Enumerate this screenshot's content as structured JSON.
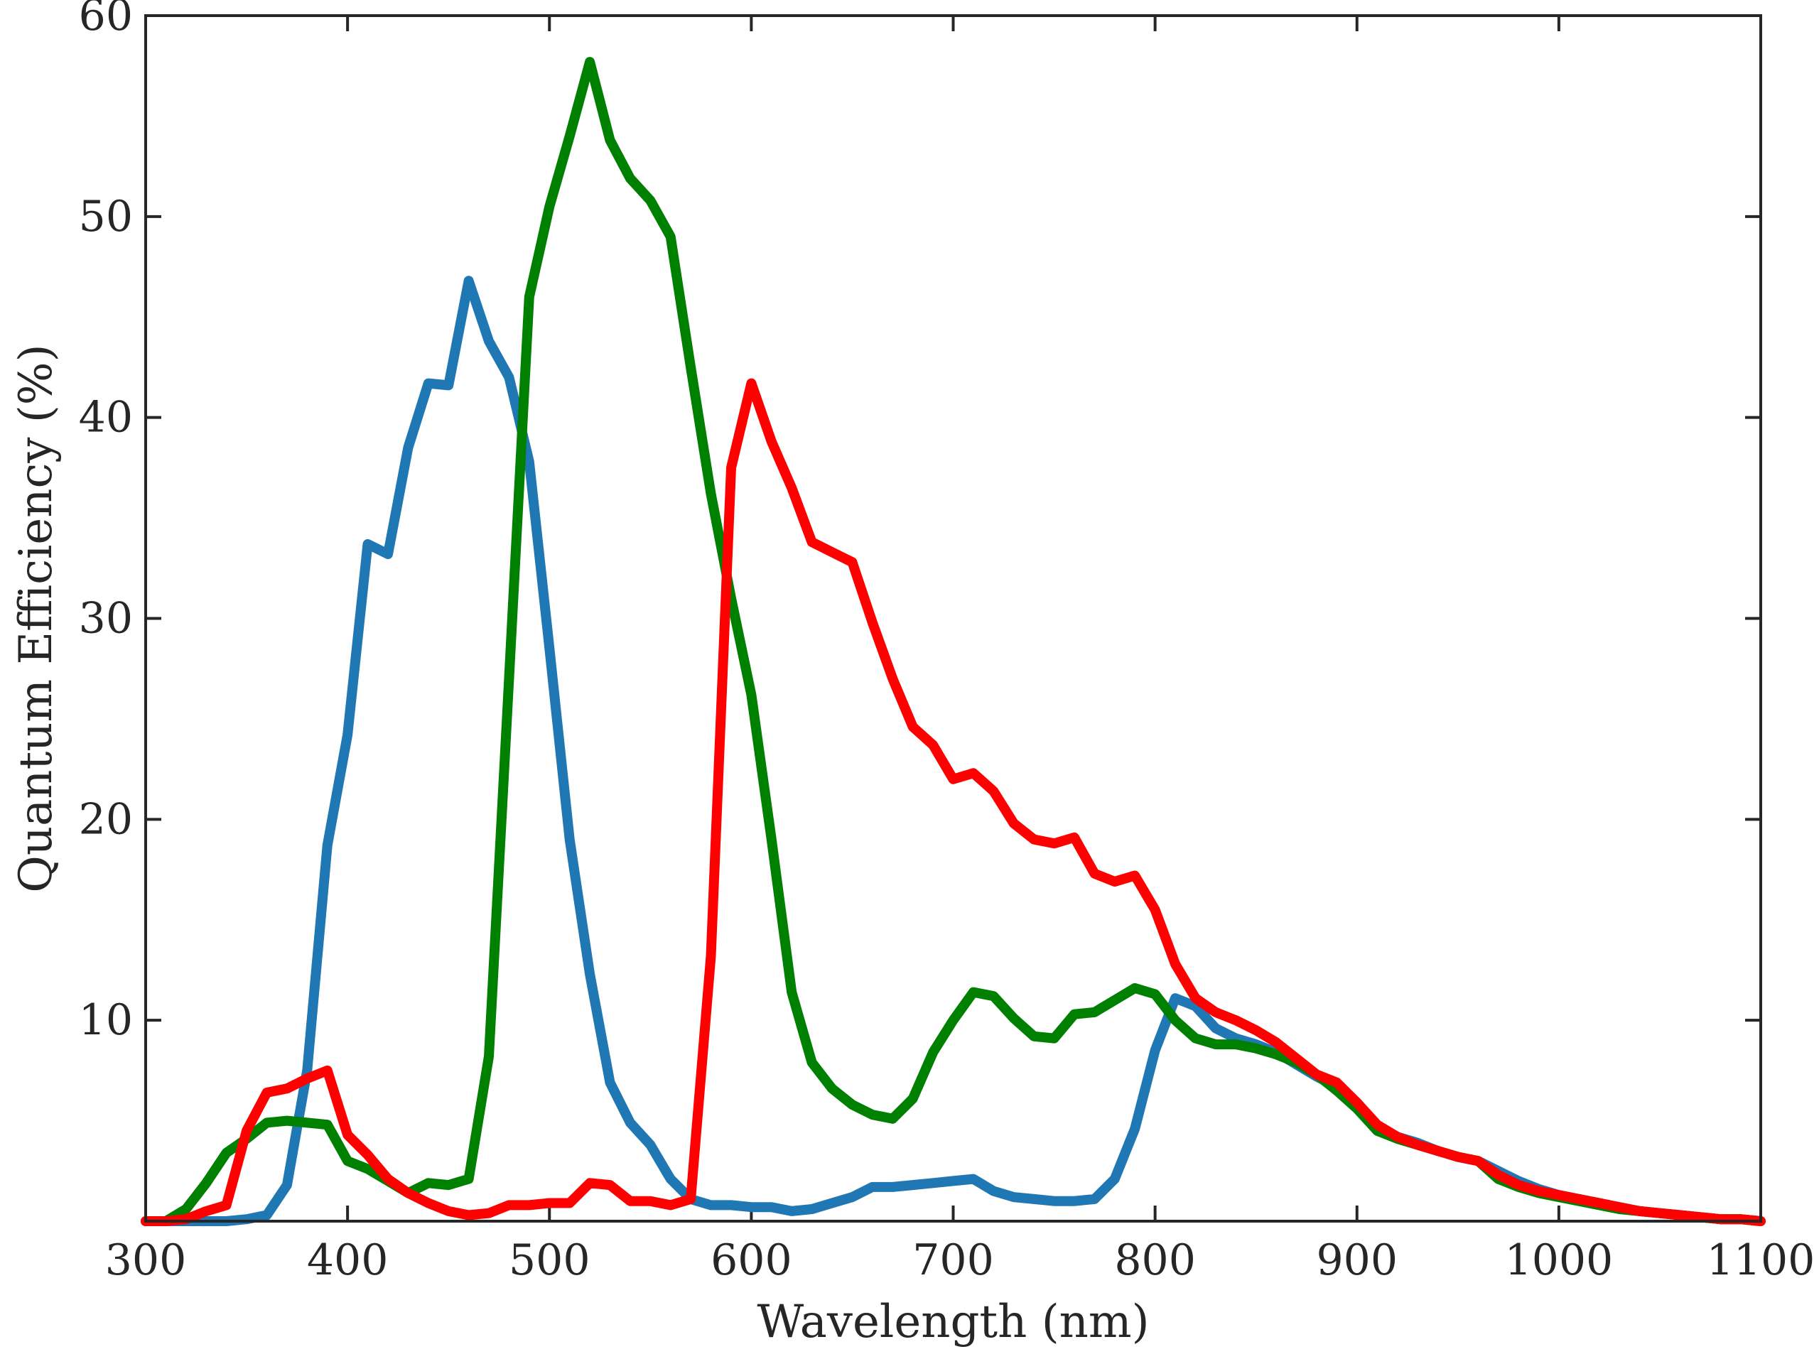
{
  "chart_data": {
    "type": "line",
    "title": "",
    "xlabel": "Wavelength (nm)",
    "ylabel": "Quantum Efficiency (%)",
    "xlim": [
      300,
      1100
    ],
    "ylim": [
      0,
      60
    ],
    "xticks": [
      "300",
      "400",
      "500",
      "600",
      "700",
      "800",
      "900",
      "1000",
      "1100"
    ],
    "yticks": [
      "10",
      "20",
      "30",
      "40",
      "50",
      "60"
    ],
    "grid": false,
    "legend": "none",
    "series": [
      {
        "color": "#1f77b4",
        "x": [
          300,
          310,
          320,
          330,
          340,
          350,
          360,
          370,
          380,
          390,
          400,
          410,
          420,
          430,
          440,
          450,
          460,
          470,
          480,
          490,
          500,
          510,
          520,
          530,
          540,
          550,
          560,
          570,
          580,
          590,
          600,
          610,
          620,
          630,
          640,
          650,
          660,
          670,
          680,
          690,
          700,
          710,
          720,
          730,
          740,
          750,
          760,
          770,
          780,
          790,
          800,
          810,
          820,
          830,
          840,
          850,
          860,
          870,
          880,
          890,
          900,
          910,
          920,
          930,
          940,
          950,
          960,
          970,
          980,
          990,
          1000,
          1010,
          1020,
          1030,
          1040,
          1050,
          1060,
          1070,
          1080,
          1090,
          1100
        ],
        "values": [
          0,
          0,
          0,
          0,
          0,
          0.1,
          0.3,
          1.8,
          7.5,
          18.7,
          24.2,
          33.7,
          33.2,
          38.5,
          41.7,
          41.6,
          46.8,
          43.8,
          42.0,
          37.8,
          28.5,
          19.0,
          12.3,
          6.9,
          4.9,
          3.8,
          2.1,
          1.1,
          0.8,
          0.8,
          0.7,
          0.7,
          0.5,
          0.6,
          0.9,
          1.2,
          1.7,
          1.7,
          1.8,
          1.9,
          2.0,
          2.1,
          1.5,
          1.2,
          1.1,
          1.0,
          1.0,
          1.1,
          2.1,
          4.6,
          8.5,
          11.1,
          10.7,
          9.6,
          9.1,
          8.8,
          8.4,
          7.8,
          7.2,
          6.7,
          5.9,
          4.7,
          4.2,
          3.9,
          3.5,
          3.2,
          3.0,
          2.5,
          2.0,
          1.6,
          1.3,
          1.1,
          0.9,
          0.7,
          0.5,
          0.4,
          0.3,
          0.2,
          0.1,
          0.1,
          0
        ]
      },
      {
        "color": "#008000",
        "x": [
          300,
          310,
          320,
          330,
          340,
          350,
          360,
          370,
          380,
          390,
          400,
          410,
          420,
          430,
          440,
          450,
          460,
          470,
          480,
          490,
          500,
          510,
          520,
          530,
          540,
          550,
          560,
          570,
          580,
          590,
          600,
          610,
          620,
          630,
          640,
          650,
          660,
          670,
          680,
          690,
          700,
          710,
          720,
          730,
          740,
          750,
          760,
          770,
          780,
          790,
          800,
          810,
          820,
          830,
          840,
          850,
          860,
          870,
          880,
          890,
          900,
          910,
          920,
          930,
          940,
          950,
          960,
          970,
          980,
          990,
          1000,
          1010,
          1020,
          1030,
          1040,
          1050,
          1060,
          1070,
          1080,
          1090,
          1100
        ],
        "values": [
          0,
          0,
          0.6,
          1.9,
          3.4,
          4.1,
          4.9,
          5.0,
          4.9,
          4.8,
          3.0,
          2.6,
          2.0,
          1.4,
          1.9,
          1.8,
          2.1,
          8.2,
          27.0,
          46.0,
          50.5,
          54.0,
          57.7,
          53.8,
          51.9,
          50.8,
          49.0,
          42.5,
          36.2,
          31.0,
          26.2,
          19.0,
          11.4,
          7.9,
          6.6,
          5.8,
          5.3,
          5.1,
          6.1,
          8.4,
          10.0,
          11.4,
          11.2,
          10.1,
          9.2,
          9.1,
          10.3,
          10.4,
          11.0,
          11.6,
          11.3,
          10.0,
          9.1,
          8.8,
          8.8,
          8.6,
          8.3,
          7.9,
          7.3,
          6.5,
          5.6,
          4.5,
          4.1,
          3.8,
          3.5,
          3.2,
          3.0,
          2.1,
          1.7,
          1.4,
          1.2,
          1.0,
          0.8,
          0.6,
          0.5,
          0.4,
          0.3,
          0.2,
          0.1,
          0.1,
          0
        ]
      },
      {
        "color": "#ff0000",
        "x": [
          300,
          310,
          320,
          330,
          340,
          350,
          360,
          370,
          380,
          390,
          400,
          410,
          420,
          430,
          440,
          450,
          460,
          470,
          480,
          490,
          500,
          510,
          520,
          530,
          540,
          550,
          560,
          570,
          580,
          590,
          600,
          610,
          620,
          630,
          640,
          650,
          660,
          670,
          680,
          690,
          700,
          710,
          720,
          730,
          740,
          750,
          760,
          770,
          780,
          790,
          800,
          810,
          820,
          830,
          840,
          850,
          860,
          870,
          880,
          890,
          900,
          910,
          920,
          930,
          940,
          950,
          960,
          970,
          980,
          990,
          1000,
          1010,
          1020,
          1030,
          1040,
          1050,
          1060,
          1070,
          1080,
          1090,
          1100
        ],
        "values": [
          0,
          0,
          0.1,
          0.5,
          0.8,
          4.5,
          6.4,
          6.6,
          7.1,
          7.5,
          4.3,
          3.3,
          2.1,
          1.4,
          0.9,
          0.5,
          0.3,
          0.4,
          0.8,
          0.8,
          0.9,
          0.9,
          1.9,
          1.8,
          1.0,
          1.0,
          0.8,
          1.1,
          13.2,
          37.5,
          41.7,
          38.8,
          36.5,
          33.8,
          33.3,
          32.8,
          29.8,
          27.0,
          24.6,
          23.7,
          22.0,
          22.3,
          21.4,
          19.8,
          19.0,
          18.8,
          19.1,
          17.3,
          16.9,
          17.2,
          15.5,
          12.8,
          11.1,
          10.4,
          10.0,
          9.5,
          8.9,
          8.1,
          7.3,
          6.9,
          5.9,
          4.8,
          4.2,
          3.8,
          3.5,
          3.2,
          3.0,
          2.3,
          1.8,
          1.5,
          1.3,
          1.1,
          0.9,
          0.7,
          0.5,
          0.4,
          0.3,
          0.2,
          0.1,
          0.1,
          0
        ]
      }
    ]
  }
}
